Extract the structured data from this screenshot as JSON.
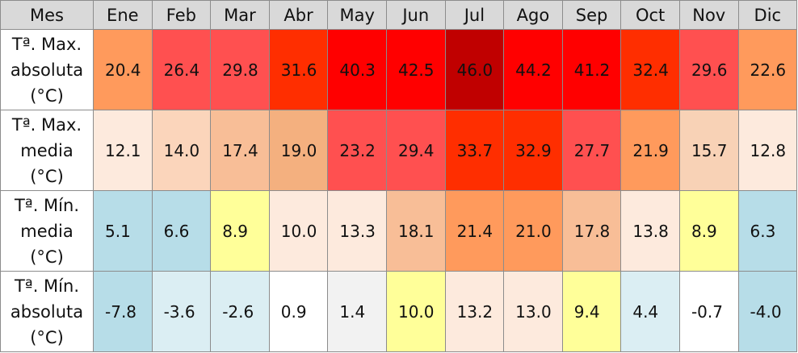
{
  "header": {
    "first": "Mes",
    "months": [
      "Ene",
      "Feb",
      "Mar",
      "Abr",
      "May",
      "Jun",
      "Jul",
      "Ago",
      "Sep",
      "Oct",
      "Nov",
      "Dic"
    ]
  },
  "rows": [
    {
      "label": [
        "Tª. Max.",
        "absoluta",
        "(°C)"
      ],
      "values": [
        "20.4",
        "26.4",
        "29.8",
        "31.6",
        "40.3",
        "42.5",
        "46.0",
        "44.2",
        "41.2",
        "32.4",
        "29.6",
        "22.6"
      ],
      "colors": [
        "#ff9a5c",
        "#ff5050",
        "#ff5050",
        "#ff2e00",
        "#ff0000",
        "#ff0000",
        "#c00000",
        "#ff0000",
        "#ff0000",
        "#ff2e00",
        "#ff5050",
        "#ff9a5c"
      ]
    },
    {
      "label": [
        "Tª. Max.",
        "media",
        "(°C)"
      ],
      "values": [
        "12.1",
        "14.0",
        "17.4",
        "19.0",
        "23.2",
        "29.4",
        "33.7",
        "32.9",
        "27.7",
        "21.9",
        "15.7",
        "12.8"
      ],
      "colors": [
        "#fdeadd",
        "#fbd5bb",
        "#f8be97",
        "#f4b07f",
        "#ff5050",
        "#ff5050",
        "#ff2e00",
        "#ff2e00",
        "#ff5050",
        "#ff9a5c",
        "#f8d2b6",
        "#fdeadd"
      ]
    },
    {
      "label": [
        "Tª. Mín.",
        "media",
        "(°C)"
      ],
      "values": [
        "5.1",
        "6.6",
        "8.9",
        "10.0",
        "13.3",
        "18.1",
        "21.4",
        "21.0",
        "17.8",
        "13.8",
        "8.9",
        "6.3"
      ],
      "colors": [
        "#b7dde8",
        "#b7dde8",
        "#ffff99",
        "#fdeadd",
        "#fdeadd",
        "#f8be97",
        "#ff9a5c",
        "#ff9a5c",
        "#f8be97",
        "#fdeadd",
        "#ffff99",
        "#b7dde8"
      ]
    },
    {
      "label": [
        "Tª. Mín.",
        "absoluta",
        "(°C)"
      ],
      "values": [
        "-7.8",
        "-3.6",
        "-2.6",
        "0.9",
        "1.4",
        "10.0",
        "13.2",
        "13.0",
        "9.4",
        "4.4",
        "-0.7",
        "-4.0"
      ],
      "colors": [
        "#b7dde8",
        "#dbeef3",
        "#dbeef3",
        "#ffffff",
        "#f2f2f2",
        "#ffff99",
        "#fdeadd",
        "#fdeadd",
        "#ffff99",
        "#dbeef3",
        "#ffffff",
        "#b7dde8"
      ]
    }
  ]
}
